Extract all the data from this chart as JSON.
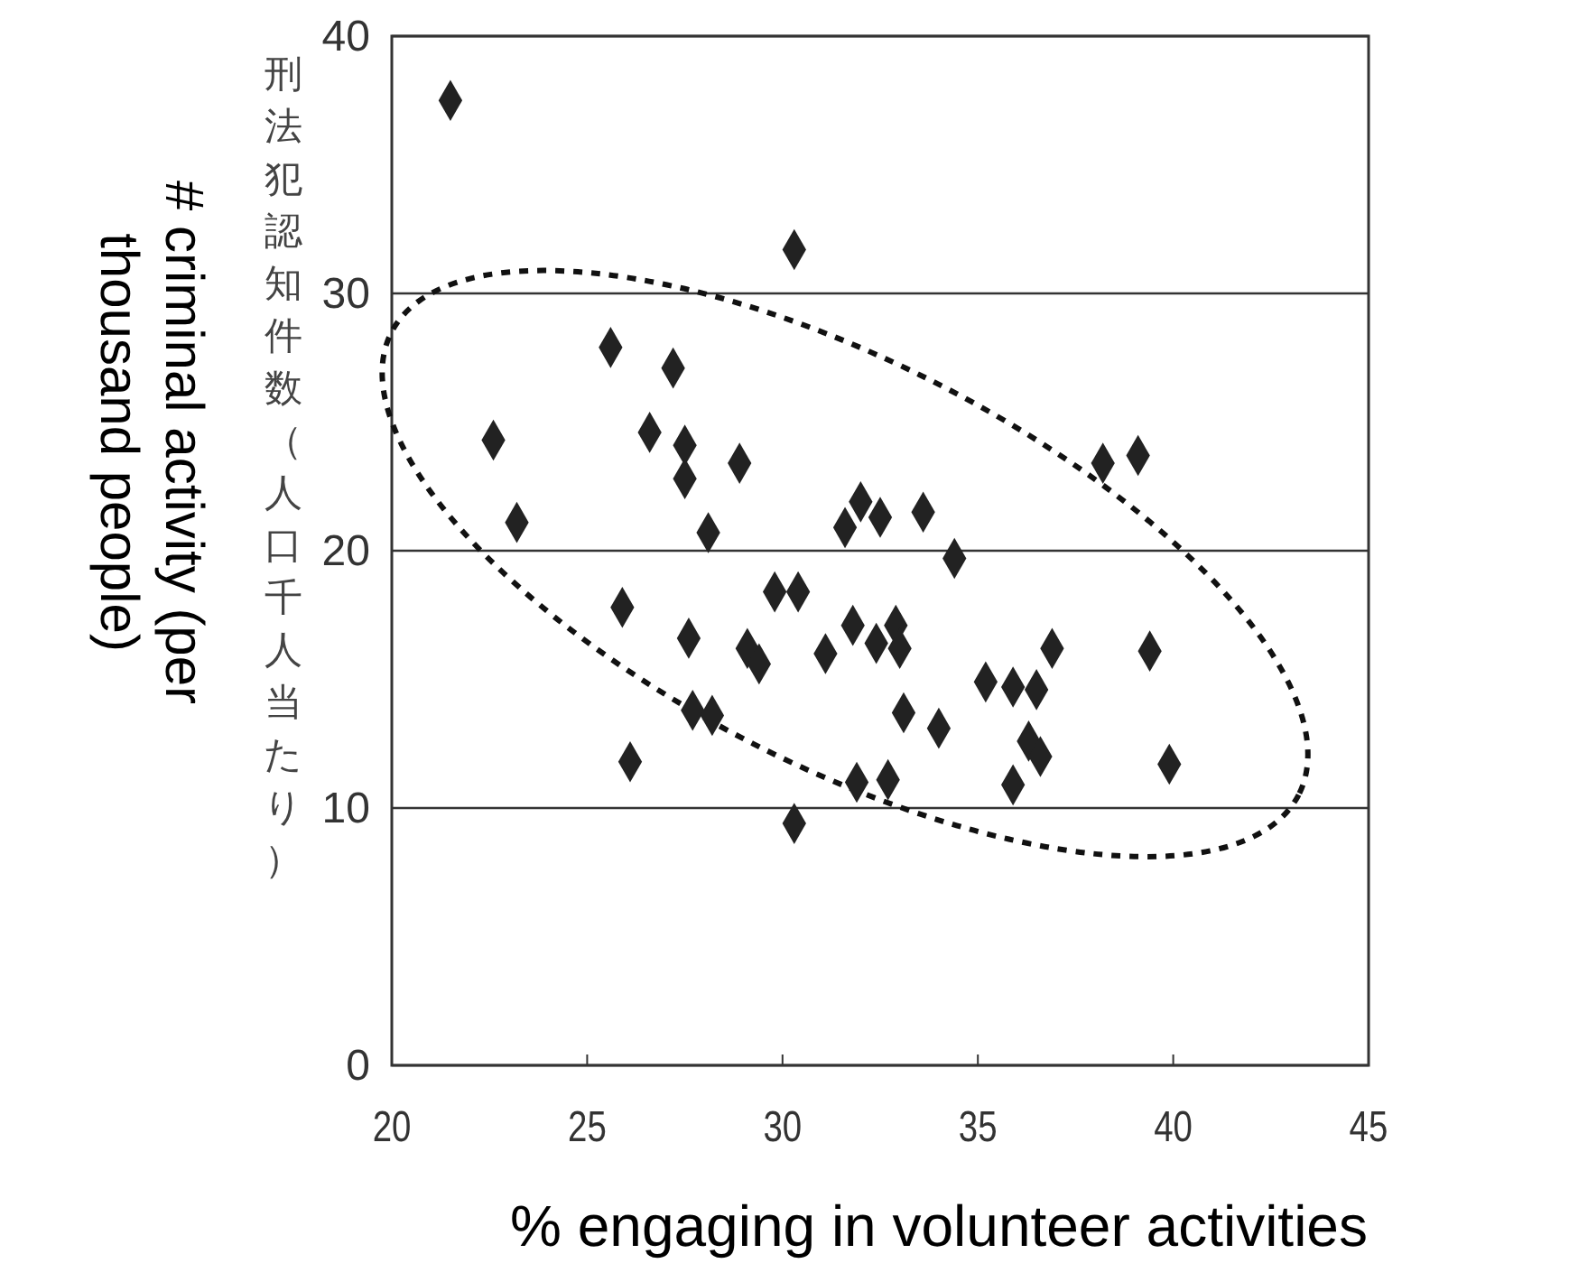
{
  "chart_data": {
    "type": "scatter",
    "xlabel": "% engaging in volunteer activities",
    "ylabel": "刑法犯認知件数（人口千人当たり）",
    "annotations": [
      "# criminal activity (per thousand people)"
    ],
    "xlim": [
      20,
      45
    ],
    "xticks": [
      20,
      25,
      30,
      35,
      40,
      45
    ],
    "ylim": [
      0,
      40
    ],
    "yticks": [
      0,
      10,
      20,
      30,
      40
    ],
    "grid": "y",
    "marker": "diamond",
    "series": [
      {
        "color": "#222222",
        "x": [
          21.5,
          30.3,
          25.6,
          27.2,
          22.6,
          26.6,
          27.5,
          27.5,
          28.9,
          23.2,
          28.1,
          31.6,
          32.0,
          32.5,
          38.2,
          39.1,
          33.6,
          34.4,
          25.9,
          29.8,
          30.4,
          27.6,
          29.1,
          29.4,
          31.1,
          31.8,
          32.4,
          32.9,
          33.0,
          27.7,
          28.2,
          26.1,
          31.9,
          32.7,
          30.3,
          36.9,
          39.4,
          35.2,
          35.9,
          36.5,
          33.1,
          34.0,
          36.3,
          36.6,
          39.9,
          35.9
        ],
        "values": [
          37.5,
          31.7,
          27.9,
          27.1,
          24.3,
          24.6,
          24.1,
          22.8,
          23.4,
          21.1,
          20.7,
          20.9,
          21.9,
          21.3,
          23.4,
          23.7,
          21.5,
          19.7,
          17.8,
          18.4,
          18.4,
          16.6,
          16.2,
          15.6,
          16.0,
          17.1,
          16.4,
          17.1,
          16.2,
          13.8,
          13.6,
          11.8,
          11.0,
          11.1,
          9.4,
          16.2,
          16.1,
          14.9,
          14.7,
          14.6,
          13.7,
          13.1,
          12.6,
          12.0,
          11.7,
          10.9
        ]
      }
    ]
  }
}
